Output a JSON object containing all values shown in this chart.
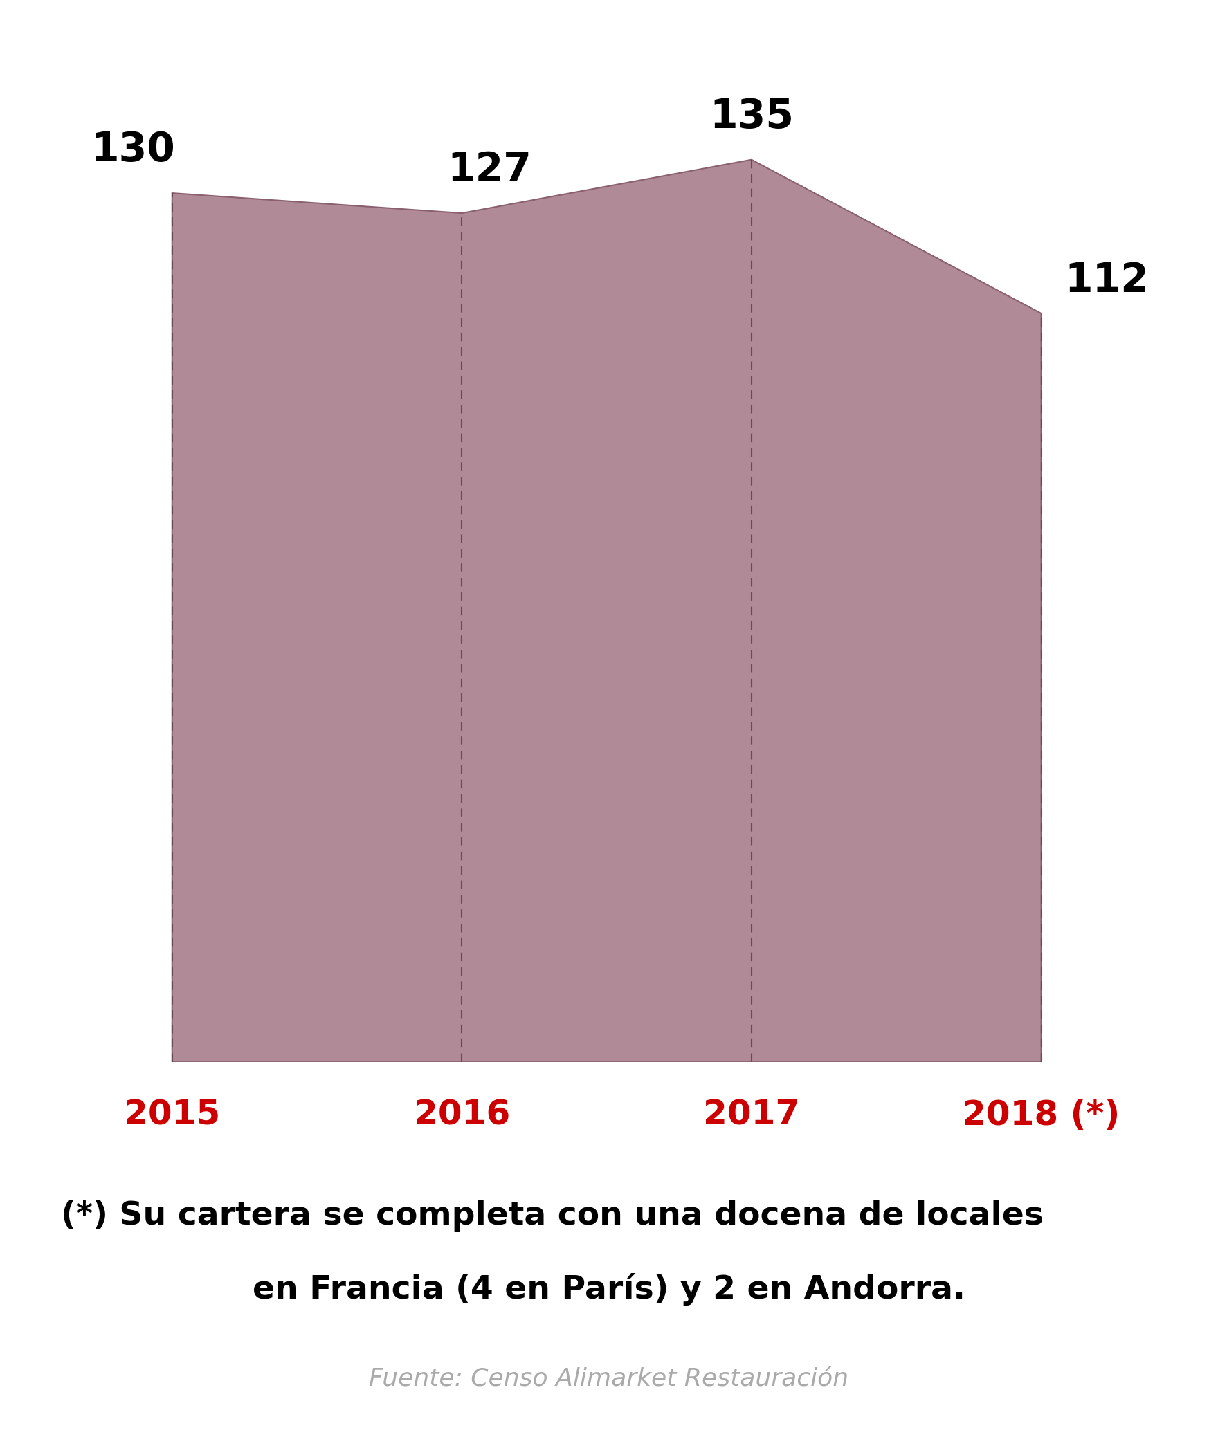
{
  "years": [
    2015,
    2016,
    2017,
    2018
  ],
  "values": [
    130,
    127,
    135,
    112
  ],
  "year_labels": [
    "2015",
    "2016",
    "2017",
    "2018 (*)"
  ],
  "value_labels": [
    "130",
    "127",
    "135",
    "112"
  ],
  "fill_color": "#b08a96",
  "fill_alpha": 1.0,
  "edge_color": "#8a6070",
  "edge_width": 1.5,
  "dashed_line_color": "#6a4a55",
  "year_label_color": "#cc0000",
  "year_label_fontsize": 36,
  "value_label_fontsize": 42,
  "value_label_color": "#000000",
  "footnote_line1": "(*) Su cartera se completa con una docena de locales",
  "footnote_line2": "en Francia (4 en París) y 2 en Andorra.",
  "footnote_fontsize": 34,
  "footnote_color": "#000000",
  "source_text": "Fuente: Censo Alimarket Restauración",
  "source_fontsize": 26,
  "source_color": "#aaaaaa",
  "background_color": "#ffffff"
}
